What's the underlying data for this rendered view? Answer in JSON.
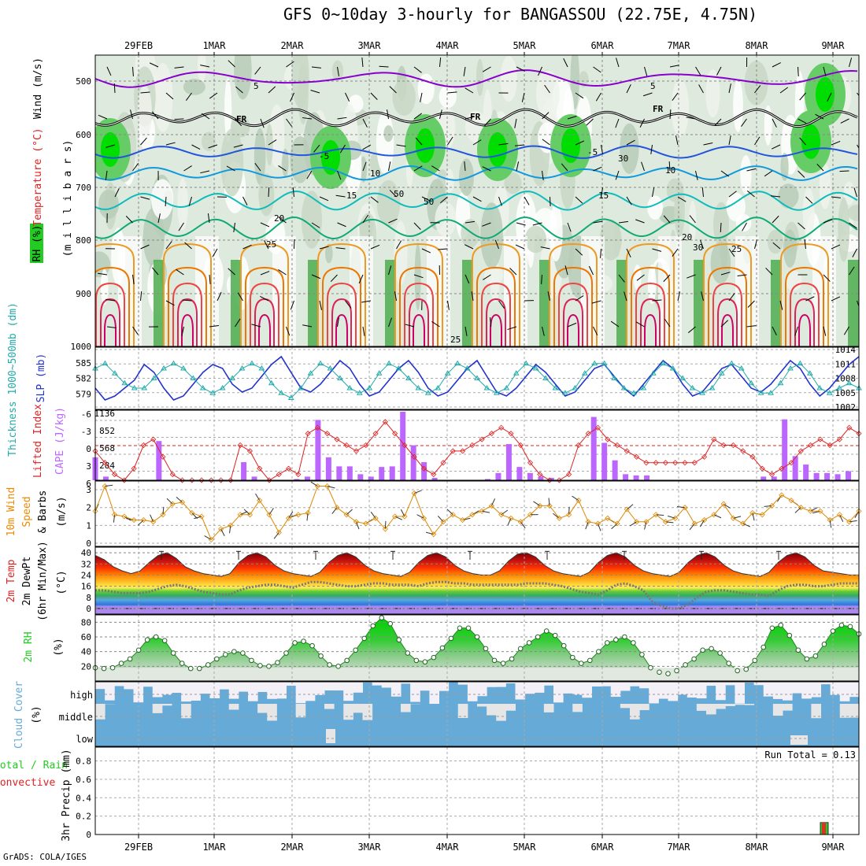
{
  "title": "GFS 0~10day 3-hourly for BANGASSOU (22.75E, 4.75N)",
  "footer": "GrADS: COLA/IGES",
  "colors": {
    "rh_green": "#22cc22",
    "temp_red": "#dd2222",
    "wind_orange": "#ee8800",
    "slp_blue": "#2233cc",
    "thickness_cyan": "#22aaaa",
    "cape_purple": "#bb66ff",
    "cloud_blue": "#66aad8",
    "cloud_white": "#f4f0f8"
  },
  "dates": [
    "29FEB",
    "1MAR",
    "2MAR",
    "3MAR",
    "4MAR",
    "5MAR",
    "6MAR",
    "7MAR",
    "8MAR",
    "9MAR"
  ],
  "panels": {
    "upper": {
      "labels": [
        "RH (%)",
        "Temperature (°C)",
        "Wind (m/s)",
        "(millibars)"
      ],
      "label_rh": "RH (%)",
      "label_temp": "Temperature (°C)",
      "label_wind": "Wind (m/s)",
      "label_mb": "(m i l l i b a r s)",
      "ticks": [
        "500",
        "600",
        "700",
        "800",
        "900",
        "1000"
      ],
      "contour_labels": [
        "5",
        "5",
        "FR",
        "FR",
        "FR",
        "-5",
        "-5",
        "10",
        "10",
        "15",
        "15",
        "20",
        "20",
        "25",
        "25",
        "25",
        "30",
        "50",
        "30",
        "50"
      ]
    },
    "slp": {
      "label_thk": "Thickness 1000~500mb (dm)",
      "label_slp": "SLP (mb)",
      "left_ticks": [
        "585",
        "582",
        "579"
      ],
      "right_ticks": [
        "1014",
        "1011",
        "1008",
        "1005",
        "1002"
      ]
    },
    "cape": {
      "label_li": "Lifted Index",
      "label_cape": "CAPE (J/kg)",
      "left_ticks": [
        "-6",
        "-3",
        "0",
        "3",
        "6"
      ],
      "right_ticks": [
        "1136",
        "852",
        "568",
        "284"
      ]
    },
    "wind10": {
      "label_a": "10m Wind",
      "label_b": "Speed",
      "label_c": "& Barbs",
      "label_unit": "(m/s)",
      "ticks": [
        "3",
        "2",
        "1",
        "0"
      ]
    },
    "temp2m": {
      "label_a": "2m Temp",
      "label_b": "2m DewPt",
      "label_c": "(6hr Min/Max)",
      "label_unit": "(°C)",
      "ticks": [
        "40",
        "32",
        "24",
        "16",
        "8",
        "0"
      ]
    },
    "rh2m": {
      "label_a": "2m RH",
      "label_unit": "(%)",
      "ticks": [
        "80",
        "60",
        "40",
        "20"
      ]
    },
    "cloud": {
      "label_a": "Cloud Cover",
      "label_unit": "(%)",
      "levels": [
        "high",
        "middle",
        "low"
      ]
    },
    "precip": {
      "label_a": "Total / Rain",
      "label_b": "Convective",
      "label_c": "3hr Precip (mm)",
      "ticks": [
        "0.8",
        "0.6",
        "0.4",
        "0.2",
        "0"
      ],
      "run_total": "Run Total = 0.13"
    }
  },
  "chart_data": [
    {
      "type": "line",
      "name": "SLP and 1000-500mb thickness",
      "series": [
        {
          "name": "SLP (mb)",
          "values": [
            1005,
            1002,
            1003,
            1005,
            1007,
            1011,
            1009,
            1005,
            1002,
            1003,
            1006,
            1009,
            1011,
            1010,
            1006,
            1004,
            1005,
            1008,
            1011,
            1013,
            1009,
            1005,
            1004,
            1006,
            1009,
            1012,
            1010,
            1006,
            1003,
            1004,
            1007,
            1010,
            1012,
            1009,
            1005,
            1003,
            1004,
            1007,
            1010,
            1012,
            1008,
            1004,
            1003,
            1005,
            1008,
            1011,
            1009,
            1006,
            1003,
            1004,
            1007,
            1010,
            1011,
            1008,
            1005,
            1003,
            1006,
            1009,
            1012,
            1010,
            1006,
            1003,
            1004,
            1007,
            1010,
            1011,
            1008,
            1005,
            1004,
            1006,
            1009,
            1012,
            1010,
            1006,
            1003,
            1005,
            1008,
            1011,
            1013
          ]
        },
        {
          "name": "Thickness (dm)",
          "values": [
            584,
            585,
            583,
            581,
            580,
            580,
            582,
            584,
            585,
            584,
            582,
            580,
            579,
            580,
            582,
            584,
            585,
            584,
            581,
            579,
            578,
            580,
            583,
            585,
            584,
            582,
            580,
            579,
            580,
            583,
            585,
            584,
            582,
            580,
            579,
            580,
            583,
            585,
            584,
            582,
            580,
            579,
            580,
            583,
            585,
            584,
            582,
            580,
            579,
            580,
            583,
            585,
            585,
            582,
            580,
            579,
            580,
            583,
            585,
            584,
            582,
            580,
            579,
            580,
            583,
            585,
            584,
            581,
            579,
            579,
            581,
            584,
            585,
            583,
            580,
            579,
            580,
            581,
            580
          ]
        }
      ]
    },
    {
      "type": "bar",
      "name": "CAPE",
      "values": [
        380,
        60,
        0,
        0,
        0,
        0,
        650,
        0,
        0,
        0,
        0,
        0,
        0,
        0,
        300,
        60,
        0,
        0,
        0,
        20,
        60,
        1000,
        380,
        230,
        230,
        100,
        60,
        220,
        230,
        1136,
        580,
        300,
        40,
        0,
        0,
        0,
        0,
        20,
        120,
        600,
        220,
        120,
        60,
        40,
        0,
        0,
        0,
        1050,
        620,
        330,
        100,
        80,
        80,
        0,
        0,
        0,
        0,
        0,
        0,
        0,
        0,
        0,
        0,
        60,
        60,
        1010,
        400,
        260,
        120,
        120,
        100,
        150,
        0
      ]
    },
    {
      "type": "line",
      "name": "Lifted Index",
      "values": [
        1,
        3,
        5,
        6,
        4,
        0,
        -1,
        2,
        5,
        6,
        6,
        6,
        6,
        6,
        6,
        0,
        1,
        4,
        6,
        5,
        4,
        5,
        -2,
        -3,
        -2,
        -1,
        0,
        1,
        0,
        -2,
        -4,
        -2,
        0,
        2,
        4,
        5,
        3,
        1,
        1,
        0,
        -1,
        -2,
        -3,
        -2,
        0,
        3,
        5,
        6,
        6,
        5,
        0,
        -2,
        -3,
        -1,
        0,
        1,
        2,
        3,
        3,
        3,
        3,
        3,
        3,
        2,
        -1,
        0,
        0,
        1,
        2,
        4,
        5,
        4,
        3,
        1,
        0,
        -1,
        0,
        -1,
        -3,
        -2
      ]
    },
    {
      "type": "line",
      "name": "10m Wind Speed",
      "values": [
        1.8,
        3.2,
        1.6,
        1.5,
        1.3,
        1.3,
        1.2,
        1.6,
        2.2,
        2.3,
        1.7,
        1.5,
        0.2,
        0.8,
        1.0,
        1.6,
        1.6,
        2.4,
        1.6,
        0.6,
        1.4,
        1.6,
        1.7,
        3.2,
        3.2,
        2.0,
        1.6,
        1.2,
        1.1,
        1.4,
        0.8,
        1.5,
        1.5,
        2.8,
        1.4,
        0.5,
        1.2,
        1.6,
        1.3,
        1.6,
        1.8,
        2.1,
        1.6,
        1.4,
        1.2,
        1.6,
        2.1,
        2.1,
        1.4,
        1.6,
        2.4,
        1.2,
        1.1,
        1.4,
        1.1,
        1.9,
        1.2,
        1.2,
        1.6,
        1.2,
        1.4,
        2.0,
        1.1,
        1.3,
        1.6,
        2.2,
        1.4,
        1.1,
        1.7,
        1.6,
        2.1,
        2.7,
        2.4,
        2.0,
        1.8,
        1.8,
        1.3,
        1.6,
        1.2,
        1.8
      ]
    },
    {
      "type": "area",
      "name": "2m Temp",
      "values": [
        38,
        35,
        30,
        27,
        25,
        27,
        33,
        38,
        40,
        36,
        30,
        27,
        25,
        24,
        23,
        25,
        33,
        38,
        40,
        37,
        31,
        27,
        25,
        24,
        23,
        26,
        33,
        38,
        40,
        37,
        31,
        27,
        25,
        24,
        23,
        26,
        33,
        38,
        40,
        37,
        31,
        27,
        25,
        24,
        24,
        27,
        34,
        39,
        40,
        37,
        31,
        27,
        25,
        24,
        23,
        26,
        33,
        38,
        40,
        37,
        31,
        27,
        25,
        24,
        23,
        26,
        33,
        38,
        40,
        37,
        31,
        27,
        25,
        24,
        23,
        26,
        33,
        38,
        40,
        37,
        31,
        27,
        26,
        25,
        24,
        24
      ]
    },
    {
      "type": "line",
      "name": "2m DewPt",
      "values": [
        13,
        13,
        12,
        11,
        11,
        11,
        12,
        14,
        16,
        17,
        16,
        14,
        12,
        11,
        10,
        10,
        13,
        15,
        16,
        17,
        17,
        16,
        15,
        17,
        19,
        19,
        18,
        17,
        16,
        16,
        17,
        18,
        18,
        17,
        17,
        17,
        16,
        18,
        19,
        19,
        18,
        18,
        17,
        17,
        17,
        17,
        17,
        17,
        18,
        18,
        18,
        17,
        16,
        14,
        12,
        11,
        10,
        13,
        17,
        18,
        16,
        13,
        5,
        2,
        0,
        0,
        3,
        8,
        12,
        13,
        13,
        12,
        11,
        10,
        10,
        9,
        13,
        16,
        17,
        17,
        16,
        16,
        17,
        18,
        18,
        18
      ]
    },
    {
      "type": "area",
      "name": "2m RH",
      "values": [
        18,
        17,
        18,
        24,
        30,
        42,
        56,
        60,
        55,
        38,
        24,
        17,
        17,
        22,
        30,
        36,
        40,
        38,
        28,
        21,
        20,
        25,
        38,
        52,
        54,
        48,
        34,
        22,
        20,
        28,
        42,
        58,
        75,
        86,
        78,
        56,
        38,
        28,
        26,
        32,
        45,
        58,
        72,
        72,
        60,
        44,
        28,
        24,
        30,
        44,
        52,
        60,
        68,
        62,
        48,
        32,
        24,
        28,
        40,
        52,
        56,
        60,
        52,
        36,
        18,
        12,
        10,
        14,
        22,
        30,
        42,
        44,
        38,
        24,
        14,
        16,
        28,
        46,
        72,
        76,
        62,
        42,
        30,
        34,
        50,
        68,
        76,
        74,
        64
      ]
    },
    {
      "type": "bar",
      "name": "3hr Precip",
      "values": [
        0.13
      ],
      "categories": [
        "9MAR"
      ]
    }
  ]
}
